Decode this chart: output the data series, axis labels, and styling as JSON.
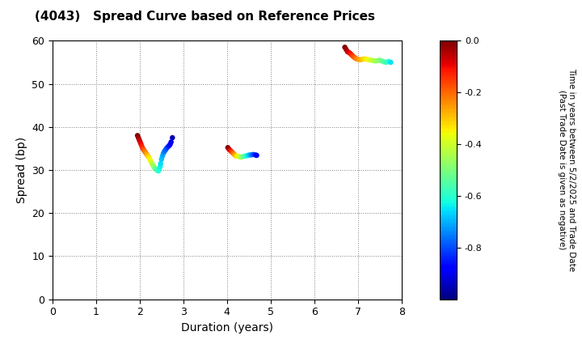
{
  "title": "(4043)   Spread Curve based on Reference Prices",
  "xlabel": "Duration (years)",
  "ylabel": "Spread (bp)",
  "colorbar_label": "Time in years between 5/2/2025 and Trade Date\n(Past Trade Date is given as negative)",
  "xlim": [
    0,
    8
  ],
  "ylim": [
    0,
    60
  ],
  "xticks": [
    0,
    1,
    2,
    3,
    4,
    5,
    6,
    7,
    8
  ],
  "yticks": [
    0,
    10,
    20,
    30,
    40,
    50,
    60
  ],
  "cmap": "jet",
  "vmin": -1.0,
  "vmax": 0.0,
  "cluster1": {
    "duration": [
      1.95,
      1.97,
      1.99,
      2.01,
      2.03,
      2.05,
      2.07,
      2.09,
      2.11,
      2.13,
      2.15,
      2.17,
      2.19,
      2.21,
      2.23,
      2.25,
      2.27,
      2.29,
      2.31,
      2.33,
      2.35,
      2.37,
      2.39,
      2.41,
      2.43,
      2.45,
      2.47,
      2.48,
      2.5,
      2.52,
      2.54,
      2.56,
      2.58,
      2.6,
      2.62,
      2.65,
      2.68,
      2.7,
      2.72,
      2.75
    ],
    "spread": [
      38.0,
      37.5,
      37.0,
      36.5,
      36.0,
      35.5,
      35.0,
      34.7,
      34.4,
      34.1,
      33.8,
      33.5,
      33.2,
      32.9,
      32.5,
      32.1,
      31.7,
      31.3,
      31.0,
      30.7,
      30.4,
      30.2,
      30.0,
      29.9,
      29.8,
      30.2,
      30.8,
      31.5,
      32.5,
      33.2,
      33.8,
      34.2,
      34.5,
      34.8,
      35.1,
      35.4,
      35.7,
      36.0,
      36.5,
      37.5
    ],
    "time": [
      0.0,
      -0.025,
      -0.05,
      -0.075,
      -0.1,
      -0.125,
      -0.15,
      -0.175,
      -0.2,
      -0.225,
      -0.25,
      -0.275,
      -0.3,
      -0.325,
      -0.35,
      -0.375,
      -0.4,
      -0.425,
      -0.45,
      -0.475,
      -0.5,
      -0.525,
      -0.55,
      -0.575,
      -0.6,
      -0.62,
      -0.64,
      -0.66,
      -0.68,
      -0.7,
      -0.72,
      -0.74,
      -0.76,
      -0.78,
      -0.8,
      -0.83,
      -0.86,
      -0.88,
      -0.9,
      -0.95
    ]
  },
  "cluster2": {
    "duration": [
      4.02,
      4.05,
      4.08,
      4.11,
      4.14,
      4.17,
      4.2,
      4.24,
      4.28,
      4.32,
      4.36,
      4.4,
      4.44,
      4.48,
      4.52,
      4.56,
      4.6,
      4.65,
      4.68
    ],
    "spread": [
      35.2,
      34.8,
      34.5,
      34.2,
      33.9,
      33.6,
      33.3,
      33.2,
      33.1,
      33.0,
      33.1,
      33.2,
      33.3,
      33.4,
      33.5,
      33.5,
      33.6,
      33.5,
      33.4
    ],
    "time": [
      0.0,
      -0.05,
      -0.1,
      -0.15,
      -0.2,
      -0.25,
      -0.3,
      -0.35,
      -0.4,
      -0.45,
      -0.5,
      -0.55,
      -0.6,
      -0.65,
      -0.7,
      -0.75,
      -0.8,
      -0.85,
      -0.9
    ]
  },
  "cluster3": {
    "duration": [
      6.7,
      6.73,
      6.76,
      6.79,
      6.82,
      6.85,
      6.88,
      6.91,
      6.94,
      6.97,
      7.0,
      7.05,
      7.1,
      7.15,
      7.2,
      7.25,
      7.3,
      7.35,
      7.4,
      7.45,
      7.5,
      7.55,
      7.6,
      7.65,
      7.7,
      7.75
    ],
    "spread": [
      58.5,
      58.0,
      57.5,
      57.3,
      57.1,
      56.8,
      56.5,
      56.2,
      56.0,
      55.8,
      55.7,
      55.6,
      55.7,
      55.8,
      55.7,
      55.6,
      55.5,
      55.4,
      55.3,
      55.4,
      55.5,
      55.3,
      55.1,
      55.0,
      55.2,
      55.0
    ],
    "time": [
      0.0,
      -0.025,
      -0.05,
      -0.075,
      -0.1,
      -0.125,
      -0.15,
      -0.175,
      -0.2,
      -0.225,
      -0.25,
      -0.275,
      -0.3,
      -0.325,
      -0.35,
      -0.375,
      -0.4,
      -0.425,
      -0.45,
      -0.475,
      -0.5,
      -0.525,
      -0.55,
      -0.575,
      -0.6,
      -0.65
    ]
  }
}
